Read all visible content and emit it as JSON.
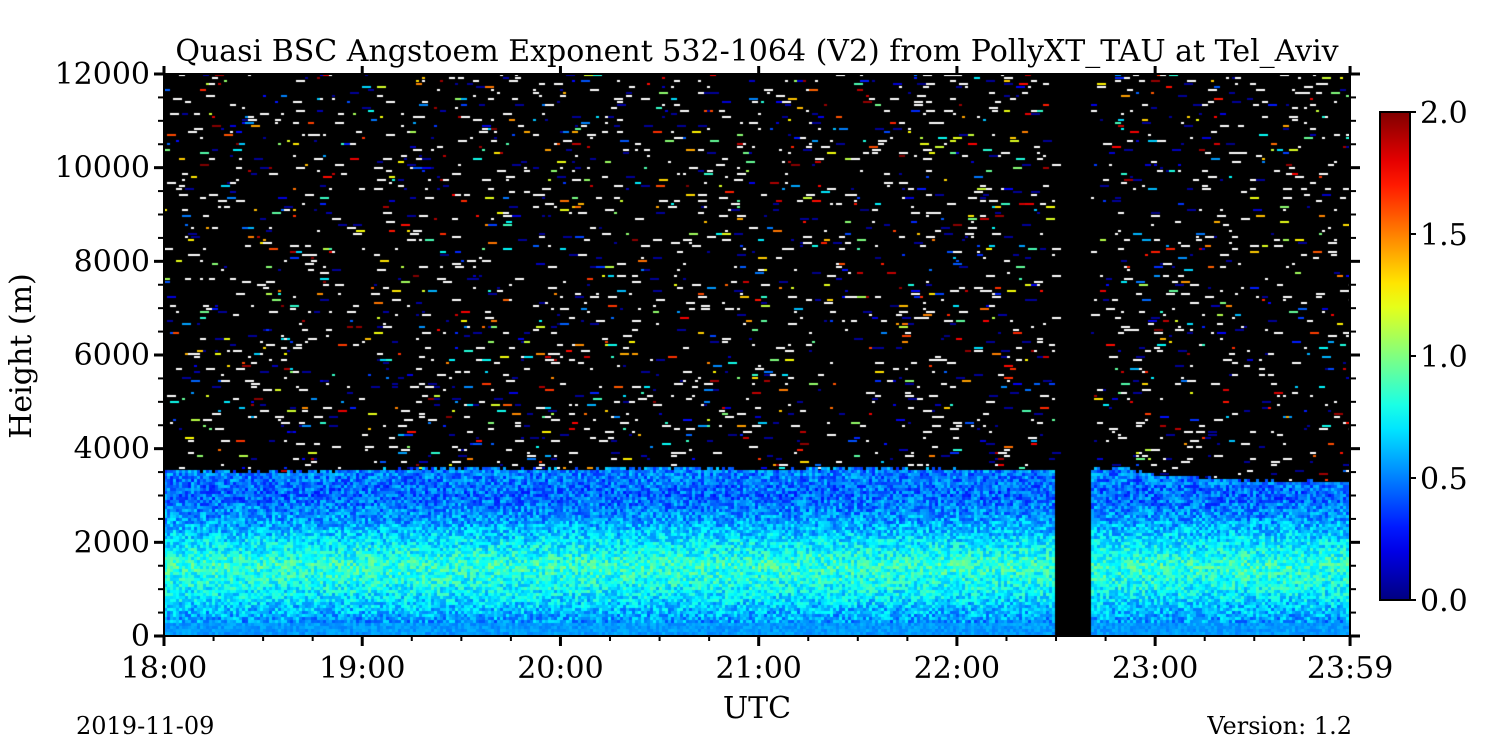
{
  "chart_data": {
    "type": "heatmap",
    "title": "Quasi BSC Angstoem Exponent 532-1064 (V2) from PollyXT_TAU at Tel_Aviv",
    "xlabel": "UTC",
    "ylabel": "Height (m)",
    "x_tick_labels": [
      "18:00",
      "19:00",
      "20:00",
      "21:00",
      "22:00",
      "23:00",
      "23:59"
    ],
    "x_range_hours": [
      18.0,
      23.983
    ],
    "y_tick_labels": [
      "0",
      "2000",
      "4000",
      "6000",
      "8000",
      "10000",
      "12000"
    ],
    "ylim": [
      0,
      12000
    ],
    "colorbar": {
      "range": [
        0.0,
        2.0
      ],
      "tick_labels": [
        "0.0",
        "0.5",
        "1.0",
        "1.5",
        "2.0"
      ],
      "colormap": "jet"
    },
    "background_color": "#000000",
    "no_data_gap_utc_hours": [
      22.5,
      22.68
    ],
    "aerosol_layer_top_m": [
      {
        "t": 18.0,
        "h": 3550
      },
      {
        "t": 18.5,
        "h": 3500
      },
      {
        "t": 19.0,
        "h": 3550
      },
      {
        "t": 19.5,
        "h": 3600
      },
      {
        "t": 20.0,
        "h": 3550
      },
      {
        "t": 20.5,
        "h": 3600
      },
      {
        "t": 21.0,
        "h": 3550
      },
      {
        "t": 21.5,
        "h": 3600
      },
      {
        "t": 22.0,
        "h": 3550
      },
      {
        "t": 22.5,
        "h": 3550
      },
      {
        "t": 22.68,
        "h": 3550
      },
      {
        "t": 22.85,
        "h": 3600
      },
      {
        "t": 23.0,
        "h": 3450
      },
      {
        "t": 23.5,
        "h": 3300
      },
      {
        "t": 23.983,
        "h": 3300
      }
    ],
    "value_profile_in_layer": [
      {
        "h": 0,
        "v": 0.55
      },
      {
        "h": 300,
        "v": 0.55
      },
      {
        "h": 1000,
        "v": 0.75
      },
      {
        "h": 1500,
        "v": 0.85
      },
      {
        "h": 2500,
        "v": 0.55
      },
      {
        "h": 3000,
        "v": 0.45
      },
      {
        "h": 3500,
        "v": 0.5
      }
    ],
    "above_layer": "sparse noisy pixels (0.0–2.0) on no-data background",
    "date": "2019-11-09",
    "version": "Version: 1.2"
  }
}
